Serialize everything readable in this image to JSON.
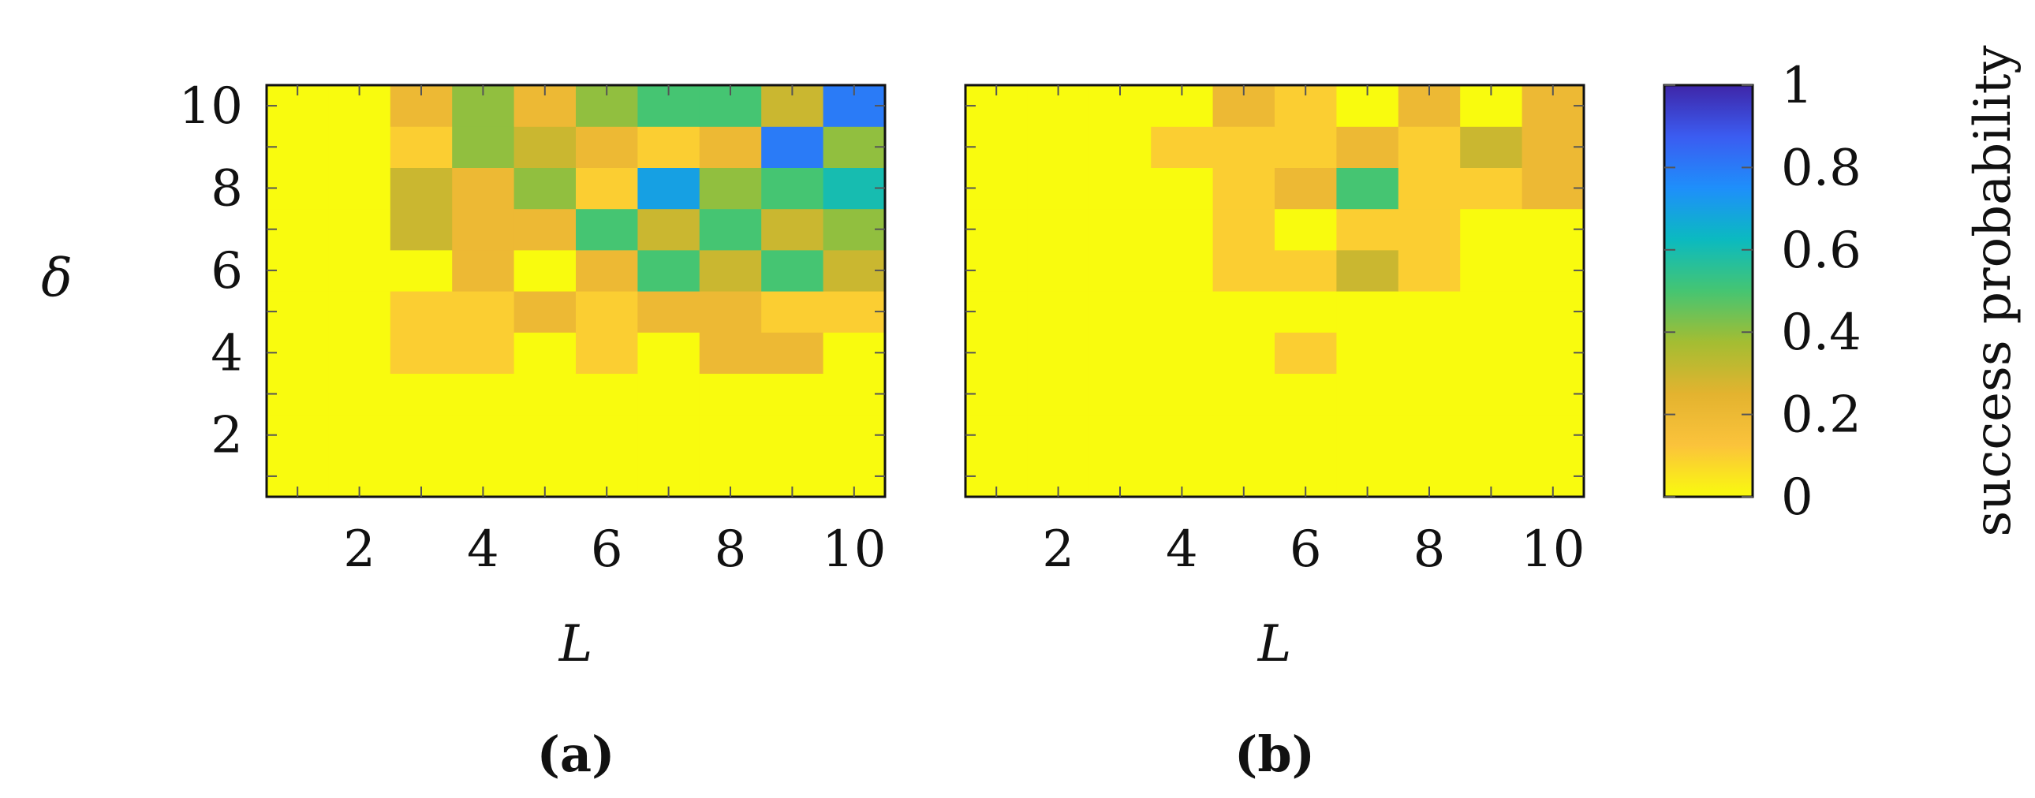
{
  "figure": {
    "colorbar": {
      "label": "success probability",
      "ticks": [
        0,
        0.2,
        0.4,
        0.6,
        0.8,
        1
      ],
      "tick_labels": [
        "0",
        "0.2",
        "0.4",
        "0.6",
        "0.8",
        "1"
      ],
      "colormap": "parula",
      "colormap_colors": [
        "#f9fb0e",
        "#fbc33b",
        "#e3b32f",
        "#a4bd32",
        "#45c572",
        "#0bbac0",
        "#1e8ffb",
        "#3b5cf1",
        "#3e26a8"
      ],
      "range": [
        0,
        1
      ]
    }
  },
  "chart_data": [
    {
      "type": "heatmap",
      "panel_label": "(a)",
      "xlabel": "L",
      "ylabel": "δ",
      "x": [
        1,
        2,
        3,
        4,
        5,
        6,
        7,
        8,
        9,
        10
      ],
      "y": [
        1,
        2,
        3,
        4,
        5,
        6,
        7,
        8,
        9,
        10
      ],
      "xlim": [
        0.5,
        10.5
      ],
      "ylim": [
        0.5,
        10.5
      ],
      "xticks": [
        2,
        4,
        6,
        8,
        10
      ],
      "yticks": [
        2,
        4,
        6,
        8,
        10
      ],
      "values": [
        [
          0,
          0,
          0,
          0,
          0,
          0,
          0,
          0,
          0,
          0
        ],
        [
          0,
          0,
          0,
          0,
          0,
          0,
          0,
          0,
          0,
          0
        ],
        [
          0,
          0,
          0,
          0,
          0,
          0,
          0,
          0,
          0,
          0
        ],
        [
          0,
          0,
          0.1,
          0.1,
          0,
          0.1,
          0,
          0.2,
          0.2,
          0
        ],
        [
          0,
          0,
          0.1,
          0.1,
          0.2,
          0.1,
          0.2,
          0.2,
          0.1,
          0.1
        ],
        [
          0,
          0,
          0,
          0.2,
          0,
          0.2,
          0.5,
          0.3,
          0.5,
          0.3
        ],
        [
          0,
          0,
          0.3,
          0.2,
          0.2,
          0.5,
          0.3,
          0.5,
          0.3,
          0.4
        ],
        [
          0,
          0,
          0.3,
          0.2,
          0.4,
          0.1,
          0.7,
          0.4,
          0.5,
          0.6
        ],
        [
          0,
          0,
          0.1,
          0.4,
          0.3,
          0.2,
          0.1,
          0.2,
          0.8,
          0.4
        ],
        [
          0,
          0,
          0.2,
          0.4,
          0.2,
          0.4,
          0.5,
          0.5,
          0.3,
          0.8
        ]
      ],
      "zlim": [
        0,
        1
      ]
    },
    {
      "type": "heatmap",
      "panel_label": "(b)",
      "xlabel": "L",
      "ylabel": "",
      "x": [
        1,
        2,
        3,
        4,
        5,
        6,
        7,
        8,
        9,
        10
      ],
      "y": [
        1,
        2,
        3,
        4,
        5,
        6,
        7,
        8,
        9,
        10
      ],
      "xlim": [
        0.5,
        10.5
      ],
      "ylim": [
        0.5,
        10.5
      ],
      "xticks": [
        2,
        4,
        6,
        8,
        10
      ],
      "yticks": [],
      "values": [
        [
          0,
          0,
          0,
          0,
          0,
          0,
          0,
          0,
          0,
          0
        ],
        [
          0,
          0,
          0,
          0,
          0,
          0,
          0,
          0,
          0,
          0
        ],
        [
          0,
          0,
          0,
          0,
          0,
          0,
          0,
          0,
          0,
          0
        ],
        [
          0,
          0,
          0,
          0,
          0,
          0.1,
          0,
          0,
          0,
          0
        ],
        [
          0,
          0,
          0,
          0,
          0,
          0,
          0,
          0,
          0,
          0
        ],
        [
          0,
          0,
          0,
          0,
          0.1,
          0.1,
          0.3,
          0.1,
          0,
          0
        ],
        [
          0,
          0,
          0,
          0,
          0.1,
          0,
          0.1,
          0.1,
          0,
          0
        ],
        [
          0,
          0,
          0,
          0,
          0.1,
          0.2,
          0.5,
          0.1,
          0.1,
          0.2
        ],
        [
          0,
          0,
          0,
          0.1,
          0.1,
          0.1,
          0.2,
          0.1,
          0.3,
          0.2
        ],
        [
          0,
          0,
          0,
          0,
          0.2,
          0.1,
          0,
          0.2,
          0,
          0.2
        ]
      ],
      "zlim": [
        0,
        1
      ]
    }
  ]
}
